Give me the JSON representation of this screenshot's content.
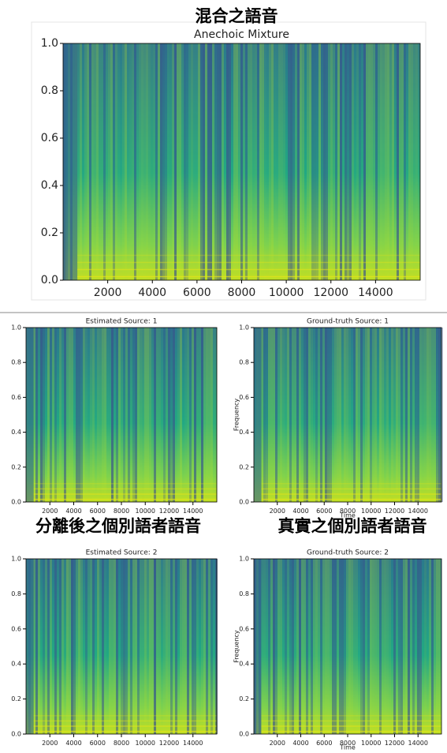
{
  "chart_data": [
    {
      "type": "spectrogram",
      "caption": "混合之語音",
      "title": "Anechoic Mixture",
      "xlim": [
        0,
        16000
      ],
      "ylim": [
        0,
        1
      ],
      "xticks": [
        2000,
        4000,
        6000,
        8000,
        10000,
        12000,
        14000
      ],
      "yticks": [
        {
          "value": 0,
          "label": "0.0"
        },
        0.2,
        0.4,
        0.6,
        0.8,
        {
          "value": 1,
          "label": "1.0"
        }
      ]
    },
    {
      "type": "spectrogram",
      "caption": "分離後之個別語者語音",
      "title": "Estimated Source: 1",
      "xlim": [
        0,
        16000
      ],
      "ylim": [
        0,
        1
      ],
      "xticks": [
        2000,
        4000,
        6000,
        8000,
        10000,
        12000,
        14000
      ],
      "yticks": [
        {
          "value": 0,
          "label": "0.0"
        },
        0.2,
        0.4,
        0.6,
        0.8,
        {
          "value": 1,
          "label": "1.0"
        }
      ]
    },
    {
      "type": "spectrogram",
      "caption": "真實之個別語者語音",
      "title": "Ground-truth Source: 1",
      "xlabel": "Time",
      "ylabel": "Frequency",
      "xlim": [
        0,
        16000
      ],
      "ylim": [
        0,
        1
      ],
      "xticks": [
        2000,
        4000,
        6000,
        8000,
        10000,
        12000,
        14000
      ],
      "yticks": [
        {
          "value": 0,
          "label": "0.0"
        },
        0.2,
        0.4,
        0.6,
        0.8,
        {
          "value": 1,
          "label": "1.0"
        }
      ]
    },
    {
      "type": "spectrogram",
      "title": "Estimated Source: 2",
      "xlim": [
        0,
        16000
      ],
      "ylim": [
        0,
        1
      ],
      "xticks": [
        2000,
        4000,
        6000,
        8000,
        10000,
        12000,
        14000
      ],
      "yticks": [
        {
          "value": 0,
          "label": "0.0"
        },
        0.2,
        0.4,
        0.6,
        0.8,
        {
          "value": 1,
          "label": "1.0"
        }
      ]
    },
    {
      "type": "spectrogram",
      "title": "Ground-truth Source: 2",
      "xlabel": "Time",
      "ylabel": "Frequency",
      "xlim": [
        0,
        16000
      ],
      "ylim": [
        0,
        1
      ],
      "xticks": [
        2000,
        4000,
        6000,
        8000,
        10000,
        12000,
        14000
      ],
      "yticks": [
        {
          "value": 0,
          "label": "0.0"
        },
        0.2,
        0.4,
        0.6,
        0.8,
        {
          "value": 1,
          "label": "1.0"
        }
      ]
    }
  ]
}
